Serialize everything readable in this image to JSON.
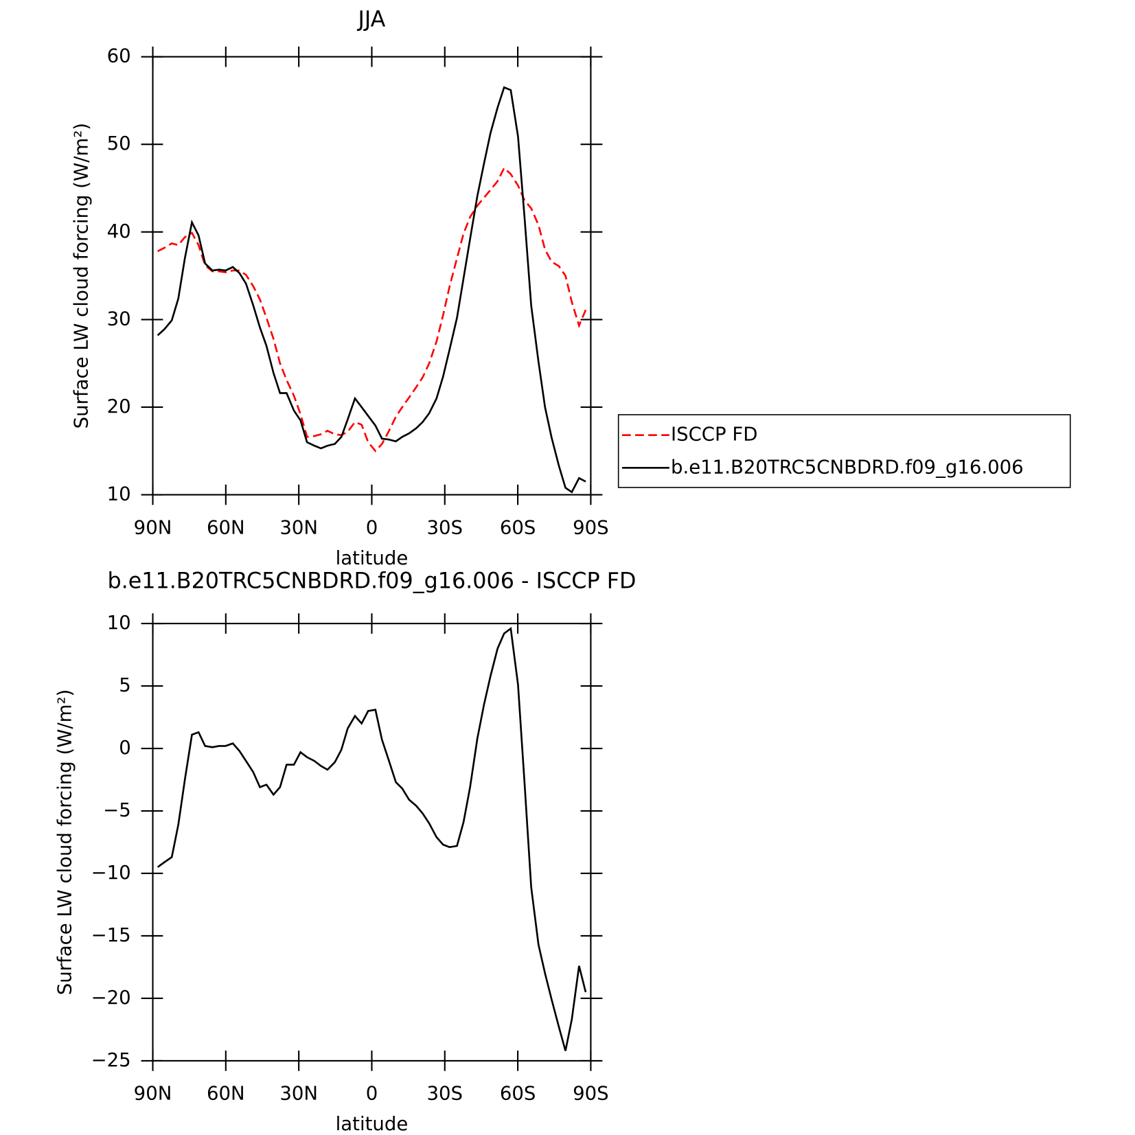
{
  "chart_data": [
    {
      "type": "line",
      "title": "JJA",
      "xlabel": "latitude",
      "ylabel": "Surface LW cloud forcing (W/m²)",
      "x": [
        88,
        85.2,
        82.2,
        79.5,
        76.8,
        73.9,
        71.2,
        68.5,
        65.5,
        62.8,
        60.1,
        57.1,
        54.4,
        51.7,
        48.7,
        46,
        43.3,
        40.4,
        37.7,
        35,
        32,
        29.3,
        26.6,
        23.6,
        20.9,
        18.2,
        15.2,
        12.5,
        9.9,
        6.9,
        4.2,
        1.5,
        -1.5,
        -4.2,
        -6.9,
        -9.9,
        -12.5,
        -15.3,
        -18.3,
        -20.9,
        -23.6,
        -26.6,
        -29.3,
        -32,
        -35,
        -37.7,
        -40.4,
        -43.4,
        -46.1,
        -48.8,
        -51.7,
        -54.4,
        -57.1,
        -60.1,
        -62.8,
        -65.5,
        -68.5,
        -71.2,
        -73.9,
        -76.9,
        -79.6,
        -82.2,
        -85.2,
        -87.9
      ],
      "xlim": [
        90,
        -90
      ],
      "xticks": [
        {
          "value": 90,
          "label": "90N"
        },
        {
          "value": 60,
          "label": "60N"
        },
        {
          "value": 30,
          "label": "30N"
        },
        0,
        {
          "value": -30,
          "label": "30S"
        },
        {
          "value": -60,
          "label": "60S"
        },
        {
          "value": -90,
          "label": "90S"
        }
      ],
      "ylim": [
        10,
        60
      ],
      "yticks": [
        10,
        20,
        30,
        40,
        50,
        60
      ],
      "series": [
        {
          "name": "ISCCP FD",
          "color": "#ff0000",
          "dashed": true,
          "values": [
            37.8,
            38.2,
            38.7,
            38.5,
            39.4,
            39.9,
            38.5,
            36.2,
            35.5,
            35.5,
            35.4,
            35.6,
            35.6,
            35.1,
            33.8,
            32.3,
            30.2,
            27.8,
            25.0,
            23.1,
            21.3,
            19.2,
            16.6,
            16.7,
            16.9,
            17.3,
            16.9,
            16.8,
            17.2,
            18.3,
            18.0,
            16.0,
            15.0,
            15.8,
            17.2,
            18.9,
            20.0,
            21.1,
            22.3,
            23.4,
            25.0,
            27.5,
            30.5,
            33.8,
            37.0,
            39.8,
            41.7,
            43.0,
            43.9,
            44.8,
            45.8,
            47.3,
            46.6,
            45.3,
            43.6,
            42.7,
            40.8,
            38.0,
            36.6,
            36.1,
            35.0,
            32.0,
            29.3,
            31.1
          ]
        },
        {
          "name": "b.e11.B20TRC5CNBDRD.f09_g16.006",
          "color": "#000000",
          "dashed": false,
          "values": [
            28.2,
            28.9,
            29.9,
            32.4,
            37.0,
            41.1,
            39.6,
            36.4,
            35.6,
            35.7,
            35.6,
            36.0,
            35.3,
            34.1,
            31.6,
            29.1,
            27.0,
            23.9,
            21.6,
            21.6,
            19.6,
            18.5,
            16.0,
            15.6,
            15.3,
            15.6,
            15.8,
            16.6,
            18.6,
            21.0,
            20.0,
            19.0,
            17.9,
            16.4,
            16.3,
            16.1,
            16.6,
            17.0,
            17.6,
            18.3,
            19.3,
            21.0,
            23.5,
            26.6,
            30.2,
            34.7,
            39.2,
            44.1,
            47.8,
            51.3,
            54.2,
            56.5,
            56.2,
            50.9,
            41.6,
            31.6,
            25.2,
            20.0,
            16.5,
            13.3,
            10.8,
            10.3,
            11.9,
            11.5
          ]
        }
      ]
    },
    {
      "type": "line",
      "title": "b.e11.B20TRC5CNBDRD.f09_g16.006 - ISCCP FD",
      "xlabel": "latitude",
      "ylabel": "Surface LW cloud forcing (W/m²)",
      "x": [
        88,
        85.2,
        82.2,
        79.5,
        76.8,
        73.9,
        71.2,
        68.5,
        65.5,
        62.8,
        60.1,
        57.1,
        54.4,
        51.7,
        48.7,
        46,
        43.3,
        40.4,
        37.7,
        35,
        32,
        29.3,
        26.6,
        23.6,
        20.9,
        18.2,
        15.2,
        12.5,
        9.9,
        6.9,
        4.2,
        1.5,
        -1.5,
        -4.2,
        -6.9,
        -9.9,
        -12.5,
        -15.3,
        -18.3,
        -20.9,
        -23.6,
        -26.6,
        -29.3,
        -32,
        -35,
        -37.7,
        -40.4,
        -43.4,
        -46.1,
        -48.8,
        -51.7,
        -54.4,
        -57.1,
        -60.1,
        -62.8,
        -65.5,
        -68.5,
        -71.2,
        -73.9,
        -76.9,
        -79.6,
        -82.2,
        -85.2,
        -87.9
      ],
      "xlim": [
        90,
        -90
      ],
      "xticks": [
        {
          "value": 90,
          "label": "90N"
        },
        {
          "value": 60,
          "label": "60N"
        },
        {
          "value": 30,
          "label": "30N"
        },
        0,
        {
          "value": -30,
          "label": "30S"
        },
        {
          "value": -60,
          "label": "60S"
        },
        {
          "value": -90,
          "label": "90S"
        }
      ],
      "ylim": [
        -25,
        10
      ],
      "yticks": [
        {
          "value": -25,
          "label": "−25"
        },
        {
          "value": -20,
          "label": "−20"
        },
        {
          "value": -15,
          "label": "−15"
        },
        {
          "value": -10,
          "label": "−10"
        },
        {
          "value": -5,
          "label": "−5"
        },
        0,
        5,
        10
      ],
      "series": [
        {
          "color": "#000000",
          "dashed": false,
          "values": [
            -9.5,
            -9.1,
            -8.7,
            -6.1,
            -2.5,
            1.1,
            1.3,
            0.2,
            0.1,
            0.2,
            0.2,
            0.4,
            -0.2,
            -1.0,
            -1.9,
            -3.1,
            -2.9,
            -3.7,
            -3.1,
            -1.3,
            -1.3,
            -0.3,
            -0.7,
            -1.0,
            -1.4,
            -1.7,
            -1.1,
            -0.1,
            1.6,
            2.6,
            2.0,
            3.0,
            3.1,
            0.7,
            -0.9,
            -2.7,
            -3.2,
            -4.1,
            -4.6,
            -5.2,
            -6.0,
            -7.1,
            -7.7,
            -7.9,
            -7.8,
            -5.9,
            -3.1,
            0.8,
            3.5,
            5.8,
            8.0,
            9.2,
            9.6,
            5.1,
            -2.8,
            -11.1,
            -15.7,
            -18.0,
            -20.1,
            -22.3,
            -24.2,
            -21.7,
            -17.4,
            -19.5
          ]
        }
      ]
    }
  ]
}
